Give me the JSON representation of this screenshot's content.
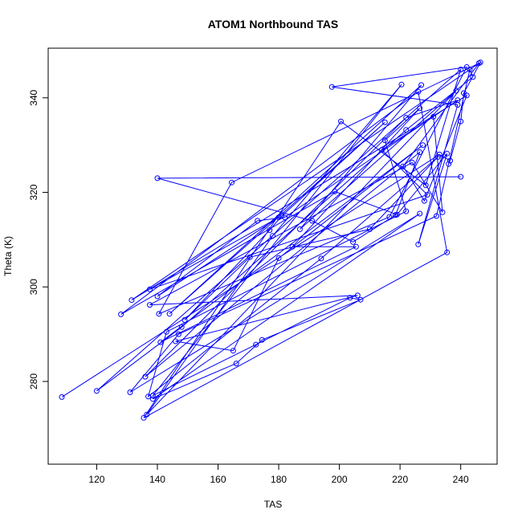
{
  "chart_data": {
    "type": "scatter",
    "title": "ATOM1 Northbound TAS",
    "xlabel": "TAS",
    "ylabel": "Theta (K)",
    "xlim": [
      104,
      252
    ],
    "ylim": [
      262.5,
      350.5
    ],
    "xticks": [
      120,
      140,
      160,
      180,
      200,
      220,
      240
    ],
    "yticks": [
      280,
      300,
      320,
      340
    ],
    "grid": false,
    "connected": true,
    "series_color": "#0000ff",
    "points": [
      [
        108.5,
        276.7
      ],
      [
        233,
        328
      ],
      [
        236.5,
        326.7
      ],
      [
        240,
        335
      ],
      [
        241,
        341
      ],
      [
        246.5,
        347.5
      ],
      [
        131.5,
        297.2
      ],
      [
        242,
        340.5
      ],
      [
        228,
        318.2
      ],
      [
        221,
        325.5
      ],
      [
        246,
        347.3
      ],
      [
        164.5,
        322.1
      ],
      [
        140.5,
        294.3
      ],
      [
        216.5,
        314.8
      ],
      [
        242,
        346.5
      ],
      [
        197.5,
        342.3
      ],
      [
        239,
        338.5
      ],
      [
        226,
        309
      ],
      [
        235.5,
        328.2
      ],
      [
        219,
        315.3
      ],
      [
        198.5,
        320.2
      ],
      [
        128,
        294.2
      ],
      [
        226,
        341.3
      ],
      [
        235.5,
        307.3
      ],
      [
        135.5,
        272.3
      ],
      [
        200.5,
        335
      ],
      [
        228.5,
        321.5
      ],
      [
        240,
        346
      ],
      [
        120,
        278
      ],
      [
        148,
        291.5
      ],
      [
        222,
        333.2
      ],
      [
        244,
        344.4
      ],
      [
        243,
        346
      ],
      [
        236,
        326
      ],
      [
        232,
        315
      ],
      [
        147,
        290
      ],
      [
        131,
        277.7
      ],
      [
        226.5,
        315.5
      ],
      [
        138.5,
        276.3
      ],
      [
        166,
        283.8
      ],
      [
        174.5,
        288.8
      ],
      [
        207,
        297.3
      ],
      [
        203.5,
        297.7
      ],
      [
        172.5,
        287.8
      ],
      [
        138.5,
        277
      ],
      [
        220.5,
        342.8
      ],
      [
        178,
        310.8
      ],
      [
        136.5,
        273
      ],
      [
        238.5,
        341.5
      ],
      [
        187,
        312.2
      ],
      [
        227,
        342.7
      ],
      [
        144,
        294.3
      ],
      [
        215,
        334.8
      ],
      [
        181,
        315
      ],
      [
        177,
        312
      ],
      [
        149,
        293
      ],
      [
        170.5,
        306.3
      ],
      [
        210,
        312.2
      ],
      [
        232.5,
        327.5
      ],
      [
        194,
        306
      ],
      [
        137,
        276.8
      ],
      [
        143,
        290.5
      ],
      [
        222,
        316
      ],
      [
        215,
        331
      ],
      [
        226.5,
        337.8
      ],
      [
        184.5,
        308.5
      ],
      [
        205.5,
        308.5
      ],
      [
        141,
        288.3
      ],
      [
        227.5,
        330
      ],
      [
        180,
        306.1
      ],
      [
        165,
        286.5
      ],
      [
        146,
        288.5
      ],
      [
        206,
        298.2
      ],
      [
        137.5,
        296.2
      ],
      [
        224,
        326.3
      ],
      [
        234,
        315.8
      ],
      [
        231,
        336
      ],
      [
        214,
        329
      ],
      [
        229,
        319.5
      ],
      [
        137.5,
        299.5
      ],
      [
        180,
        314.7
      ],
      [
        140,
        298
      ],
      [
        173,
        314
      ],
      [
        182,
        314.7
      ],
      [
        239,
        339.5
      ],
      [
        222,
        335.8
      ],
      [
        136,
        281
      ],
      [
        226.5,
        328.5
      ],
      [
        218.5,
        315.2
      ],
      [
        204.5,
        309.5
      ],
      [
        191,
        314
      ],
      [
        140,
        323
      ],
      [
        240,
        323.3
      ]
    ]
  }
}
